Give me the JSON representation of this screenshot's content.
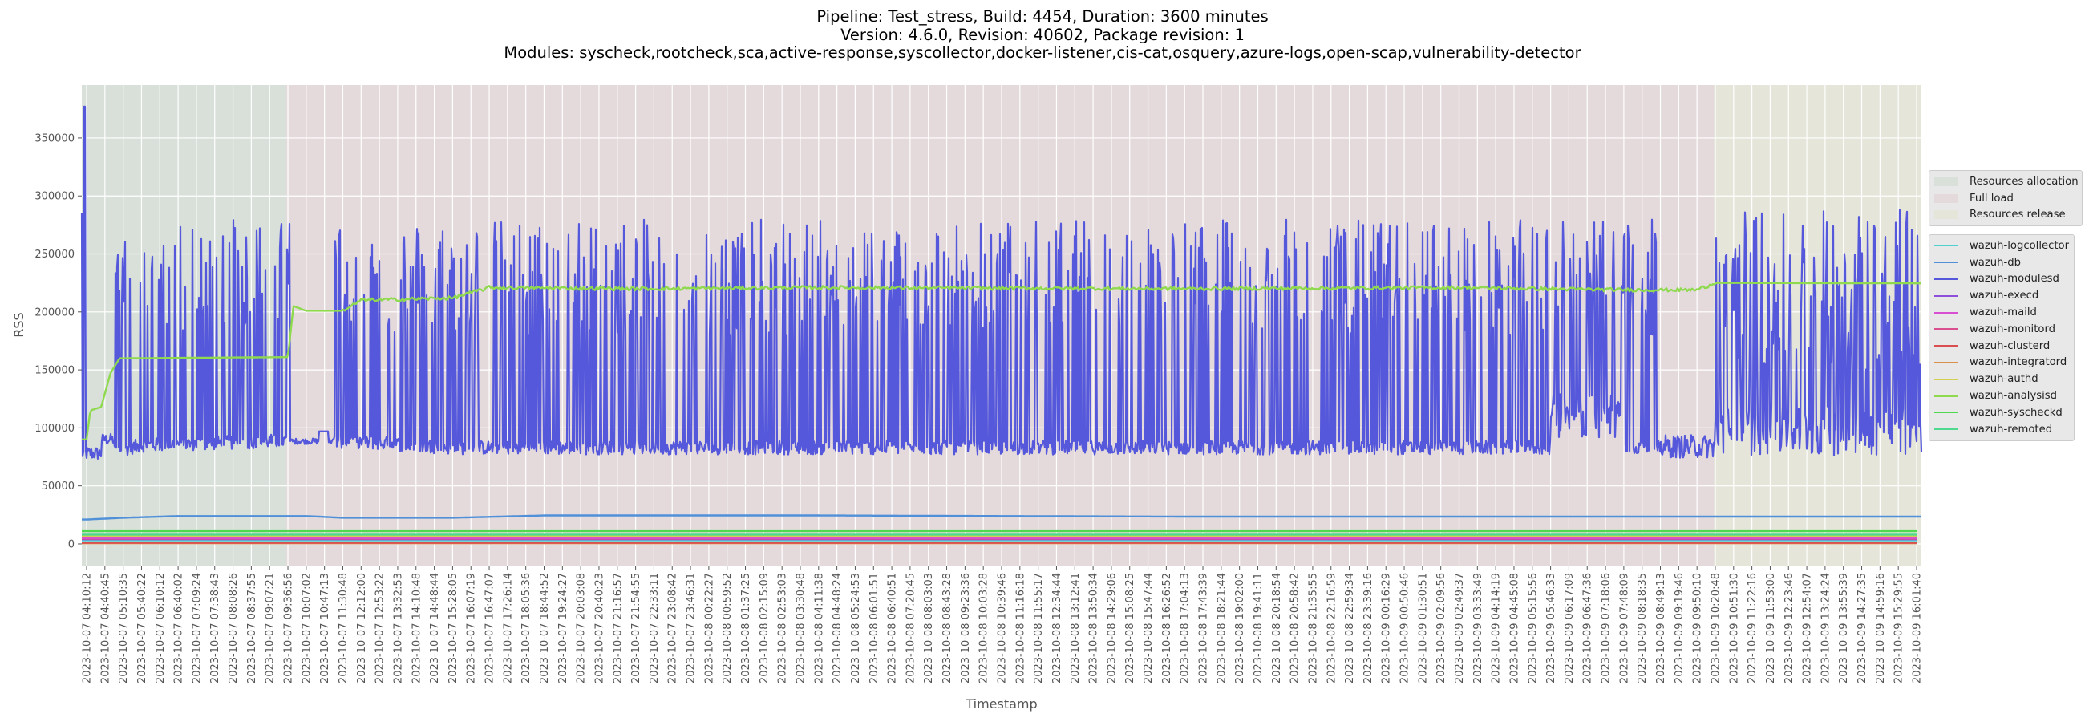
{
  "title": {
    "line1": "Pipeline: Test_stress, Build: 4454, Duration: 3600 minutes",
    "line2": "Version: 4.6.0, Revision: 40602, Package revision: 1",
    "line3": "Modules: syscheck,rootcheck,sca,active-response,syscollector,docker-listener,cis-cat,osquery,azure-logs,open-scap,vulnerability-detector"
  },
  "colors": {
    "plot_bg": "#eaeaf2",
    "grid": "#ffffff",
    "phase_allocation": "#d8e0d9",
    "phase_full_load": "#e4dadc",
    "phase_release": "#e5e5da"
  },
  "chart_data": {
    "type": "line",
    "title": "Pipeline: Test_stress, Build: 4454, Duration: 3600 minutes / Version: 4.6.0, Revision: 40602, Package revision: 1",
    "xlabel": "Timestamp",
    "ylabel": "RSS",
    "ylim": [
      -18700,
      395600
    ],
    "yticks": [
      0,
      50000,
      100000,
      150000,
      200000,
      250000,
      300000,
      350000
    ],
    "grid": true,
    "legend_position": "right, outside",
    "phases": [
      {
        "name": "Resources allocation",
        "color": "#d8e0d9",
        "start_tick": 0,
        "end_tick": 11
      },
      {
        "name": "Full load",
        "color": "#e4dadc",
        "start_tick": 11,
        "end_tick": 89
      },
      {
        "name": "Resources release",
        "color": "#e5e5da",
        "start_tick": 89,
        "end_tick": 120
      }
    ],
    "xticks": [
      "2023-10-07 04:10:12",
      "2023-10-07 04:40:45",
      "2023-10-07 05:10:35",
      "2023-10-07 05:40:22",
      "2023-10-07 06:10:12",
      "2023-10-07 06:40:02",
      "2023-10-07 07:09:24",
      "2023-10-07 07:38:43",
      "2023-10-07 08:08:26",
      "2023-10-07 08:37:55",
      "2023-10-07 09:07:21",
      "2023-10-07 09:36:56",
      "2023-10-07 10:07:02",
      "2023-10-07 10:47:13",
      "2023-10-07 11:30:48",
      "2023-10-07 12:12:00",
      "2023-10-07 12:53:22",
      "2023-10-07 13:32:53",
      "2023-10-07 14:10:48",
      "2023-10-07 14:48:44",
      "2023-10-07 15:28:05",
      "2023-10-07 16:07:19",
      "2023-10-07 16:47:07",
      "2023-10-07 17:26:14",
      "2023-10-07 18:05:36",
      "2023-10-07 18:44:52",
      "2023-10-07 19:24:27",
      "2023-10-07 20:03:08",
      "2023-10-07 20:40:23",
      "2023-10-07 21:16:57",
      "2023-10-07 21:54:55",
      "2023-10-07 22:33:11",
      "2023-10-07 23:08:42",
      "2023-10-07 23:46:31",
      "2023-10-08 00:22:27",
      "2023-10-08 00:59:52",
      "2023-10-08 01:37:25",
      "2023-10-08 02:15:09",
      "2023-10-08 02:53:03",
      "2023-10-08 03:30:48",
      "2023-10-08 04:11:38",
      "2023-10-08 04:48:24",
      "2023-10-08 05:24:53",
      "2023-10-08 06:01:51",
      "2023-10-08 06:40:51",
      "2023-10-08 07:20:45",
      "2023-10-08 08:03:03",
      "2023-10-08 08:43:28",
      "2023-10-08 09:23:36",
      "2023-10-08 10:03:28",
      "2023-10-08 10:39:46",
      "2023-10-08 11:16:18",
      "2023-10-08 11:55:17",
      "2023-10-08 12:34:44",
      "2023-10-08 13:12:41",
      "2023-10-08 13:50:34",
      "2023-10-08 14:29:06",
      "2023-10-08 15:08:25",
      "2023-10-08 15:47:44",
      "2023-10-08 16:26:52",
      "2023-10-08 17:04:13",
      "2023-10-08 17:43:39",
      "2023-10-08 18:21:44",
      "2023-10-08 19:02:00",
      "2023-10-08 19:41:11",
      "2023-10-08 20:18:54",
      "2023-10-08 20:58:42",
      "2023-10-08 21:35:55",
      "2023-10-08 22:16:59",
      "2023-10-08 22:59:34",
      "2023-10-08 23:39:16",
      "2023-10-09 00:16:29",
      "2023-10-09 00:50:46",
      "2023-10-09 01:30:51",
      "2023-10-09 02:09:56",
      "2023-10-09 02:49:37",
      "2023-10-09 03:33:49",
      "2023-10-09 04:14:19",
      "2023-10-09 04:45:08",
      "2023-10-09 05:15:56",
      "2023-10-09 05:46:33",
      "2023-10-09 06:17:09",
      "2023-10-09 06:47:36",
      "2023-10-09 07:18:06",
      "2023-10-09 07:48:09",
      "2023-10-09 08:18:35",
      "2023-10-09 08:49:13",
      "2023-10-09 09:19:46",
      "2023-10-09 09:50:10",
      "2023-10-09 10:20:48",
      "2023-10-09 10:51:30",
      "2023-10-09 11:22:16",
      "2023-10-09 11:53:00",
      "2023-10-09 12:23:46",
      "2023-10-09 12:54:07",
      "2023-10-09 13:24:24",
      "2023-10-09 13:55:39",
      "2023-10-09 14:27:35",
      "2023-10-09 14:59:16",
      "2023-10-09 15:29:55",
      "2023-10-09 16:01:40"
    ],
    "series": [
      {
        "name": "wazuh-logcollector",
        "color": "#4fd1d1",
        "approx_level": 3000
      },
      {
        "name": "wazuh-db",
        "color": "#4f90d9",
        "approx_level": 23000,
        "profile": [
          [
            0,
            21000
          ],
          [
            2,
            22500
          ],
          [
            5,
            24000
          ],
          [
            12,
            24000
          ],
          [
            14,
            22500
          ],
          [
            20,
            22500
          ],
          [
            25,
            24500
          ],
          [
            40,
            24500
          ],
          [
            60,
            23500
          ],
          [
            120,
            23500
          ]
        ]
      },
      {
        "name": "wazuh-modulesd",
        "color": "#5558db",
        "baseline_by_phase": [
          [
            0,
            72000
          ],
          [
            3,
            82000
          ],
          [
            11,
            86000
          ],
          [
            15,
            85000
          ],
          [
            20,
            80000
          ],
          [
            89,
            80000
          ],
          [
            120,
            80000
          ]
        ],
        "peaks_range": [
          200000,
          310000
        ],
        "max_peak": 377000,
        "release_baseline_high": 100000
      },
      {
        "name": "wazuh-execd",
        "color": "#8f4fd9",
        "approx_level": 4000
      },
      {
        "name": "wazuh-maild",
        "color": "#d94fd1",
        "approx_level": 5000
      },
      {
        "name": "wazuh-monitord",
        "color": "#d94f8f",
        "approx_level": 4500
      },
      {
        "name": "wazuh-clusterd",
        "color": "#d94f4f",
        "approx_level": 1000
      },
      {
        "name": "wazuh-integratord",
        "color": "#d98f4f",
        "approx_level": 500
      },
      {
        "name": "wazuh-authd",
        "color": "#d1d14f",
        "approx_level": 7000
      },
      {
        "name": "wazuh-analysisd",
        "color": "#8fd94f",
        "profile": [
          [
            0,
            90000
          ],
          [
            0.2,
            115000
          ],
          [
            0.8,
            118000
          ],
          [
            1.3,
            147000
          ],
          [
            1.8,
            160000
          ],
          [
            11,
            161000
          ],
          [
            11.3,
            205000
          ],
          [
            12,
            201000
          ],
          [
            14,
            201000
          ],
          [
            15,
            210000
          ],
          [
            20,
            212000
          ],
          [
            22,
            221000
          ],
          [
            30,
            220000
          ],
          [
            40,
            221000
          ],
          [
            60,
            220000
          ],
          [
            75,
            221000
          ],
          [
            84,
            219000
          ],
          [
            88,
            219000
          ],
          [
            89,
            225000
          ],
          [
            120,
            224000
          ]
        ]
      },
      {
        "name": "wazuh-syscheckd",
        "color": "#4fd94f",
        "approx_level": 11000
      },
      {
        "name": "wazuh-remoted",
        "color": "#4fd98f",
        "approx_level": 8000
      }
    ]
  },
  "legends": {
    "phases": [
      "Resources allocation",
      "Full load",
      "Resources release"
    ],
    "processes": [
      "wazuh-logcollector",
      "wazuh-db",
      "wazuh-modulesd",
      "wazuh-execd",
      "wazuh-maild",
      "wazuh-monitord",
      "wazuh-clusterd",
      "wazuh-integratord",
      "wazuh-authd",
      "wazuh-analysisd",
      "wazuh-syscheckd",
      "wazuh-remoted"
    ]
  }
}
